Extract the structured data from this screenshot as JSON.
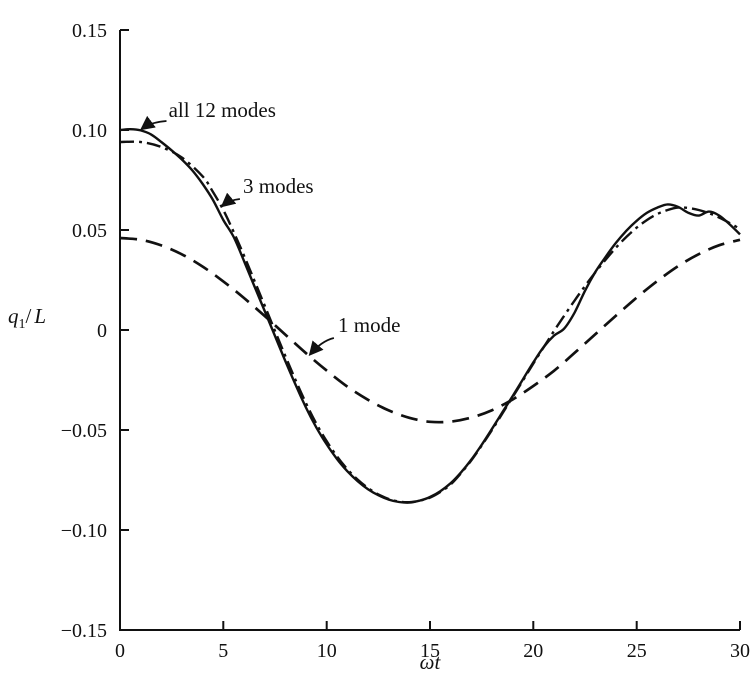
{
  "figure": {
    "background": "#ffffff",
    "ink": "#111111"
  },
  "chart_data": {
    "type": "line",
    "title": "",
    "xlabel": "ωt",
    "ylabel": "q1/L",
    "ylabel_parts": {
      "base": "q",
      "sub": "1",
      "slash": "/",
      "unit": "L"
    },
    "xlim": [
      0,
      30
    ],
    "ylim": [
      -0.15,
      0.15
    ],
    "grid": false,
    "legend_position": "inline-annotations",
    "x_ticks": [
      0,
      5,
      10,
      15,
      20,
      25,
      30
    ],
    "x_tick_labels": [
      "0",
      "5",
      "10",
      "15",
      "20",
      "25",
      "30"
    ],
    "y_ticks": [
      -0.15,
      -0.1,
      -0.05,
      0,
      0.05,
      0.1,
      0.15
    ],
    "y_tick_labels": [
      "−0.15",
      "−0.10",
      "−0.05",
      "0",
      "0.05",
      "0.10",
      "0.15"
    ],
    "series": [
      {
        "name": "all 12 modes",
        "line_style": "solid",
        "points": [
          [
            0,
            0.1
          ],
          [
            0.5,
            0.1004
          ],
          [
            1,
            0.0998
          ],
          [
            1.5,
            0.0978
          ],
          [
            2,
            0.094
          ],
          [
            2.5,
            0.0898
          ],
          [
            3,
            0.0852
          ],
          [
            3.5,
            0.0798
          ],
          [
            4,
            0.073
          ],
          [
            4.5,
            0.065
          ],
          [
            5,
            0.055
          ],
          [
            5.5,
            0.0465
          ],
          [
            6,
            0.0345
          ],
          [
            6.5,
            0.022
          ],
          [
            7,
            0.0095
          ],
          [
            7.5,
            -0.003
          ],
          [
            8,
            -0.0155
          ],
          [
            8.5,
            -0.0275
          ],
          [
            9,
            -0.0388
          ],
          [
            9.5,
            -0.0487
          ],
          [
            10,
            -0.0572
          ],
          [
            10.5,
            -0.0645
          ],
          [
            11,
            -0.0706
          ],
          [
            11.5,
            -0.0756
          ],
          [
            12,
            -0.0796
          ],
          [
            12.5,
            -0.0826
          ],
          [
            13,
            -0.0848
          ],
          [
            13.5,
            -0.086
          ],
          [
            14,
            -0.0863
          ],
          [
            14.5,
            -0.0853
          ],
          [
            15,
            -0.0835
          ],
          [
            15.5,
            -0.0806
          ],
          [
            16,
            -0.0766
          ],
          [
            16.5,
            -0.0712
          ],
          [
            17,
            -0.0648
          ],
          [
            17.5,
            -0.0574
          ],
          [
            18,
            -0.0494
          ],
          [
            18.5,
            -0.0412
          ],
          [
            19,
            -0.033
          ],
          [
            19.5,
            -0.0246
          ],
          [
            20,
            -0.0162
          ],
          [
            20.5,
            -0.0085
          ],
          [
            21,
            -0.0028
          ],
          [
            21.5,
            0.0008
          ],
          [
            22,
            0.0088
          ],
          [
            22.5,
            0.0196
          ],
          [
            23,
            0.029
          ],
          [
            23.5,
            0.0366
          ],
          [
            24,
            0.0436
          ],
          [
            24.5,
            0.0496
          ],
          [
            25,
            0.0546
          ],
          [
            25.5,
            0.0586
          ],
          [
            26,
            0.0612
          ],
          [
            26.5,
            0.0628
          ],
          [
            27,
            0.0616
          ],
          [
            27.5,
            0.0586
          ],
          [
            28,
            0.0572
          ],
          [
            28.5,
            0.0592
          ],
          [
            29,
            0.0572
          ],
          [
            29.5,
            0.0528
          ],
          [
            30,
            0.0478
          ]
        ]
      },
      {
        "name": "3 modes",
        "line_style": "dash-dot",
        "points": [
          [
            0,
            0.094
          ],
          [
            1,
            0.094
          ],
          [
            2,
            0.0915
          ],
          [
            3,
            0.0862
          ],
          [
            4,
            0.0768
          ],
          [
            4.5,
            0.069
          ],
          [
            5,
            0.06
          ],
          [
            5.5,
            0.049
          ],
          [
            6,
            0.0372
          ],
          [
            6.5,
            0.0248
          ],
          [
            7,
            0.0122
          ],
          [
            7.5,
            -0.0005
          ],
          [
            8,
            -0.013
          ],
          [
            8.5,
            -0.0252
          ],
          [
            9,
            -0.0366
          ],
          [
            9.5,
            -0.0468
          ],
          [
            10,
            -0.0556
          ],
          [
            10.5,
            -0.0632
          ],
          [
            11,
            -0.0696
          ],
          [
            11.5,
            -0.0748
          ],
          [
            12,
            -0.079
          ],
          [
            12.5,
            -0.0822
          ],
          [
            13,
            -0.0845
          ],
          [
            13.5,
            -0.0858
          ],
          [
            14,
            -0.0861
          ],
          [
            14.5,
            -0.0853
          ],
          [
            15,
            -0.0838
          ],
          [
            15.5,
            -0.081
          ],
          [
            16,
            -0.0772
          ],
          [
            16.5,
            -0.0716
          ],
          [
            17,
            -0.0652
          ],
          [
            17.5,
            -0.0578
          ],
          [
            18,
            -0.05
          ],
          [
            18.5,
            -0.0418
          ],
          [
            19,
            -0.0335
          ],
          [
            19.5,
            -0.0252
          ],
          [
            20,
            -0.0168
          ],
          [
            20.5,
            -0.0086
          ],
          [
            21,
            -0.0005
          ],
          [
            21.5,
            0.0072
          ],
          [
            22,
            0.0148
          ],
          [
            22.5,
            0.022
          ],
          [
            23,
            0.0288
          ],
          [
            23.5,
            0.0352
          ],
          [
            24,
            0.0412
          ],
          [
            24.5,
            0.0465
          ],
          [
            25,
            0.0512
          ],
          [
            25.5,
            0.055
          ],
          [
            26,
            0.058
          ],
          [
            26.5,
            0.06
          ],
          [
            27,
            0.0612
          ],
          [
            27.5,
            0.061
          ],
          [
            28,
            0.06
          ],
          [
            28.5,
            0.0584
          ],
          [
            29,
            0.0562
          ],
          [
            29.5,
            0.0535
          ],
          [
            30,
            0.0505
          ]
        ]
      },
      {
        "name": "1 mode",
        "line_style": "long-dash",
        "points": [
          [
            0,
            0.046
          ],
          [
            1,
            0.0451
          ],
          [
            2,
            0.0423
          ],
          [
            3,
            0.0378
          ],
          [
            4,
            0.0317
          ],
          [
            5,
            0.0243
          ],
          [
            6,
            0.016
          ],
          [
            7,
            0.007
          ],
          [
            8,
            -0.0023
          ],
          [
            9,
            -0.0116
          ],
          [
            10,
            -0.0203
          ],
          [
            11,
            -0.0283
          ],
          [
            12,
            -0.0349
          ],
          [
            13,
            -0.0402
          ],
          [
            14,
            -0.0439
          ],
          [
            15,
            -0.0459
          ],
          [
            16,
            -0.0458
          ],
          [
            17,
            -0.0438
          ],
          [
            18,
            -0.0401
          ],
          [
            19,
            -0.0347
          ],
          [
            20,
            -0.028
          ],
          [
            21,
            -0.0204
          ],
          [
            22,
            -0.0114
          ],
          [
            23,
            -0.0021
          ],
          [
            24,
            0.0072
          ],
          [
            25,
            0.0162
          ],
          [
            26,
            0.0245
          ],
          [
            27,
            0.0319
          ],
          [
            28,
            0.0379
          ],
          [
            29,
            0.0424
          ],
          [
            30,
            0.0451
          ]
        ]
      }
    ],
    "annotations": [
      {
        "label": "all 12 modes",
        "text_at": [
          2.35,
          0.109
        ],
        "arrow_from": [
          2.25,
          0.1045
        ],
        "arrow_ctrl": [
          1.5,
          0.104
        ],
        "arrow_to": [
          1.05,
          0.1005
        ]
      },
      {
        "label": "3 modes",
        "text_at": [
          5.95,
          0.071
        ],
        "arrow_from": [
          5.8,
          0.0655
        ],
        "arrow_ctrl": [
          5.3,
          0.065
        ],
        "arrow_to": [
          4.95,
          0.062
        ]
      },
      {
        "label": "1 mode",
        "text_at": [
          10.55,
          0.0015
        ],
        "arrow_from": [
          10.35,
          -0.004
        ],
        "arrow_ctrl": [
          9.75,
          -0.0055
        ],
        "arrow_to": [
          9.2,
          -0.0122
        ]
      }
    ]
  }
}
